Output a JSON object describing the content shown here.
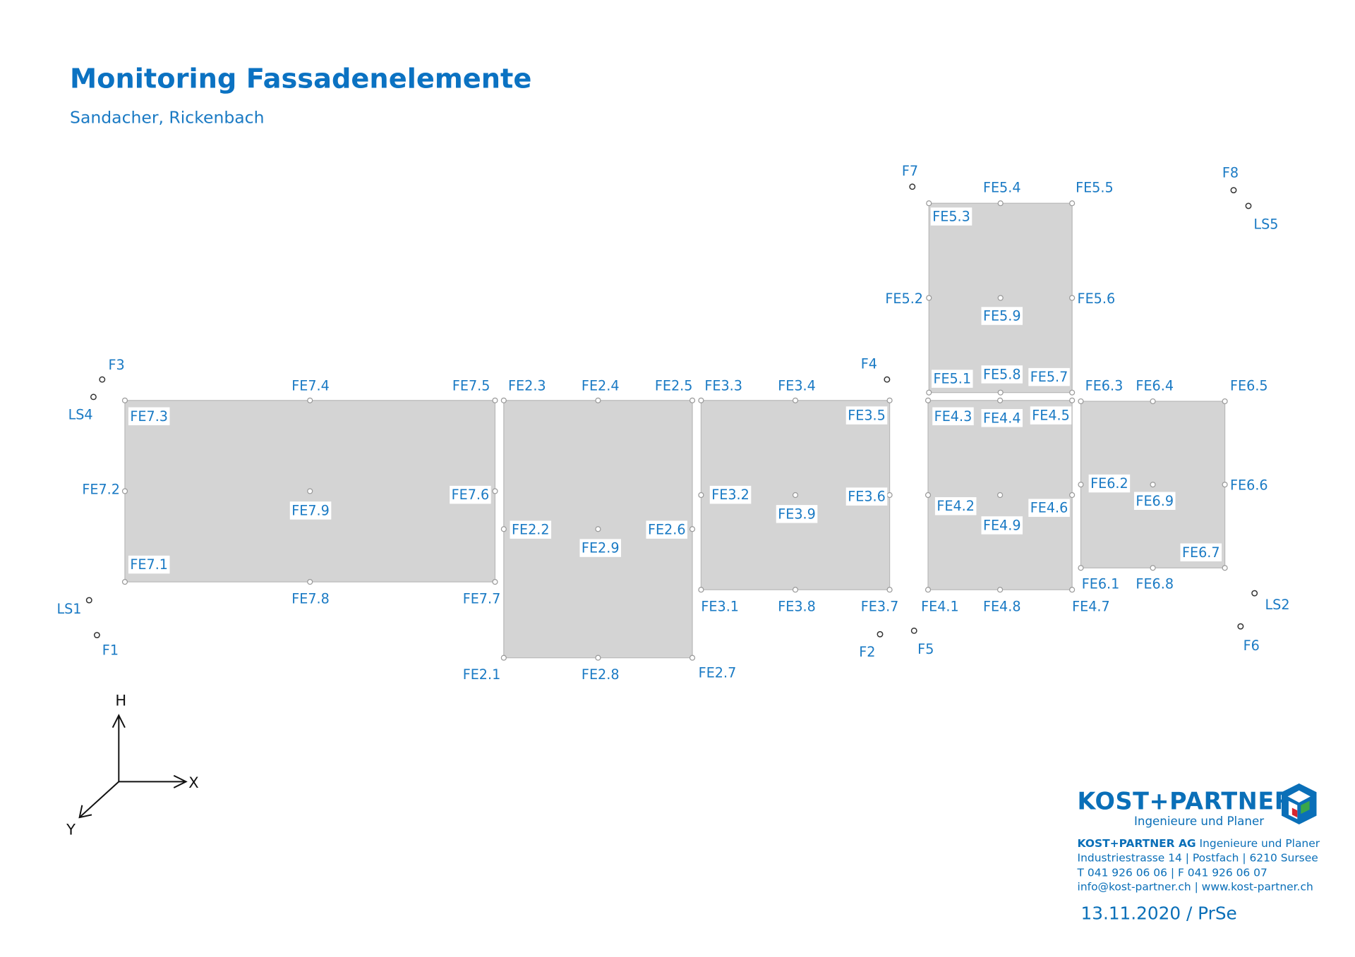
{
  "header": {
    "title": "Monitoring Fassadenelemente",
    "subtitle": "Sandacher, Rickenbach"
  },
  "elements": [
    {
      "labels": [
        "FE7.1",
        "FE7.2",
        "FE7.3",
        "FE7.4",
        "FE7.5",
        "FE7.6",
        "FE7.7",
        "FE7.8",
        "FE7.9"
      ]
    },
    {
      "labels": [
        "FE2.1",
        "FE2.2",
        "FE2.3",
        "FE2.4",
        "FE2.5",
        "FE2.6",
        "FE2.7",
        "FE2.8",
        "FE2.9"
      ]
    },
    {
      "labels": [
        "FE3.1",
        "FE3.2",
        "FE3.3",
        "FE3.4",
        "FE3.5",
        "FE3.6",
        "FE3.7",
        "FE3.8",
        "FE3.9"
      ]
    },
    {
      "labels": [
        "FE4.1",
        "FE4.2",
        "FE4.3",
        "FE4.4",
        "FE4.5",
        "FE4.6",
        "FE4.7",
        "FE4.8",
        "FE4.9"
      ]
    },
    {
      "labels": [
        "FE5.1",
        "FE5.2",
        "FE5.3",
        "FE5.4",
        "FE5.5",
        "FE5.6",
        "FE5.7",
        "FE5.8",
        "FE5.9"
      ]
    },
    {
      "labels": [
        "FE6.1",
        "FE6.2",
        "FE6.3",
        "FE6.4",
        "FE6.5",
        "FE6.6",
        "FE6.7",
        "FE6.8",
        "FE6.9"
      ]
    }
  ],
  "fixed_points": [
    "F1",
    "F2",
    "F3",
    "F4",
    "F5",
    "F6",
    "F7",
    "F8"
  ],
  "ls_points": [
    "LS1",
    "LS2",
    "LS4",
    "LS5"
  ],
  "axes": {
    "h": "H",
    "x": "X",
    "y": "Y"
  },
  "logo": {
    "brand": "KOST+PARTNER",
    "tagline": "Ingenieure und Planer"
  },
  "contact": {
    "company": "KOST+PARTNER AG",
    "company_rest": "Ingenieure und Planer",
    "address": "Industriestrasse 14 | Postfach | 6210 Sursee",
    "phone": "T 041 926 06 06 | F 041 926 06 07",
    "web": "info@kost-partner.ch | www.kost-partner.ch"
  },
  "date": "13.11.2020 / PrSe"
}
